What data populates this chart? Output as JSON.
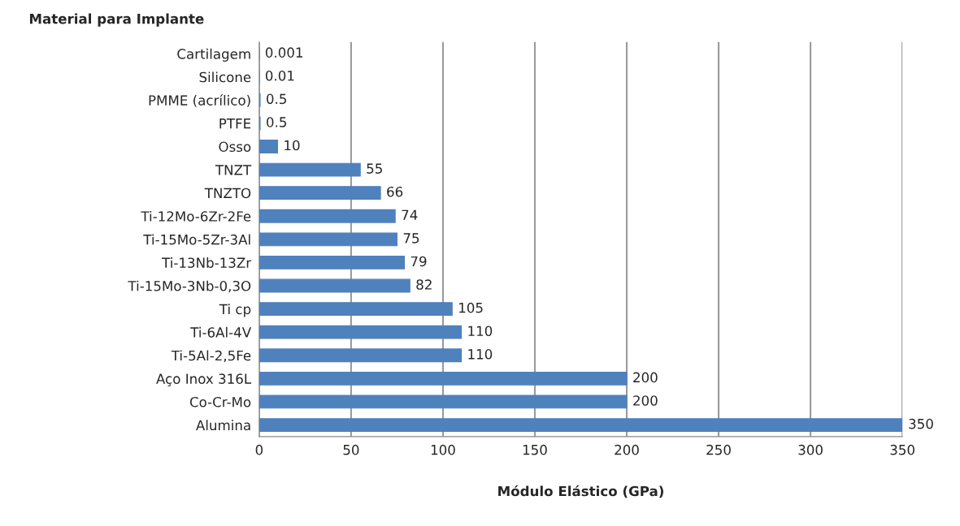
{
  "chart_data": {
    "type": "bar",
    "orientation": "horizontal",
    "ylabel": "Material para Implante",
    "xlabel": "Módulo Elástico (GPa)",
    "categories": [
      "Cartilagem",
      "Silicone",
      "PMME (acrílico)",
      "PTFE",
      "Osso",
      "TNZT",
      "TNZTO",
      "Ti-12Mo-6Zr-2Fe",
      "Ti-15Mo-5Zr-3Al",
      "Ti-13Nb-13Zr",
      "Ti-15Mo-3Nb-0,3O",
      "Ti cp",
      "Ti-6Al-4V",
      "Ti-5Al-2,5Fe",
      "Aço Inox 316L",
      "Co-Cr-Mo",
      "Alumina"
    ],
    "values": [
      0.001,
      0.01,
      0.5,
      0.5,
      10,
      55,
      66,
      74,
      75,
      79,
      82,
      105,
      110,
      110,
      200,
      200,
      350
    ],
    "color": "#4f81bd",
    "xlim": [
      0,
      350
    ],
    "xticks": [
      0,
      50,
      100,
      150,
      200,
      250,
      300,
      350
    ],
    "grid": "x",
    "data_labels": true
  }
}
